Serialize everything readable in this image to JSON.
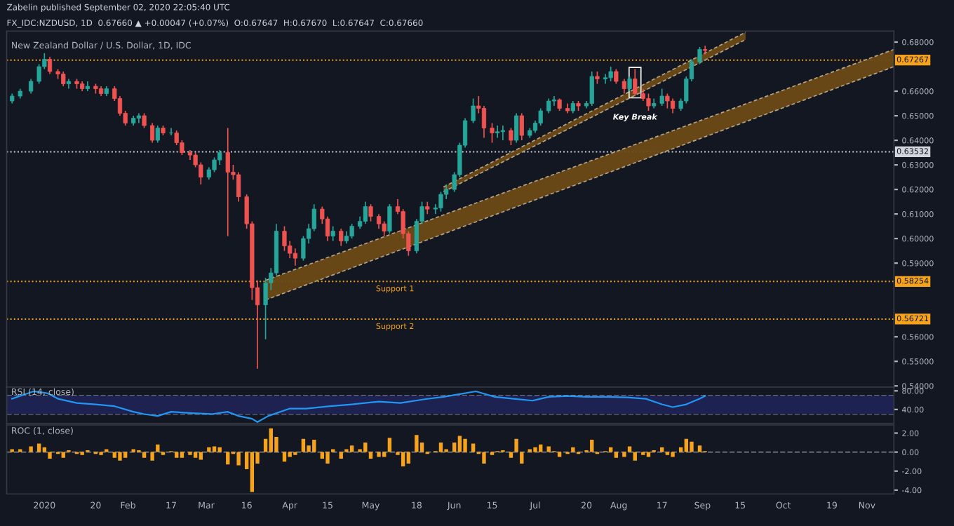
{
  "chart_data": [
    {
      "type": "candlestick",
      "title": "New Zealand Dollar / U.S. Dollar, 1D, IDC",
      "subtitle": "FX_IDC:NZDUSD, 1D  0.67660 ▲ +0.00047 (+0.07%)  O:0.67647  H:0.67670  L:0.67647  C:0.67660",
      "annotations": [
        "Zabelin published September 02, 2020 22:05:40 UTC",
        {
          "text": "Key Break",
          "x": "2020-08-07",
          "y": 0.658
        },
        {
          "text": "Support 1",
          "x": "2020-05-10",
          "y": 0.58254
        },
        {
          "text": "Support 2",
          "x": "2020-05-10",
          "y": 0.56721
        }
      ],
      "colors": [
        "#26a69a",
        "#26a69a",
        "#26a69a",
        "#26a69a",
        "#26a69a",
        "#ef5350",
        "#ef5350",
        "#ef5350",
        "#26a69a",
        "#ef5350",
        "#ef5350",
        "#26a69a",
        "#ef5350",
        "#ef5350",
        "#26a69a",
        "#ef5350",
        "#ef5350",
        "#ef5350",
        "#26a69a",
        "#26a69a",
        "#ef5350",
        "#ef5350",
        "#26a69a",
        "#ef5350",
        "#26a69a",
        "#ef5350",
        "#ef5350",
        "#ef5350",
        "#ef5350",
        "#ef5350",
        "#26a69a",
        "#26a69a",
        "#26a69a",
        "#ef5350",
        "#ef5350",
        "#ef5350",
        "#ef5350",
        "#ef5350",
        "#ef5350",
        "#26a69a",
        "#26a69a",
        "#26a69a",
        "#ef5350",
        "#ef5350",
        "#ef5350",
        "#26a69a",
        "#26a69a",
        "#26a69a",
        "#ef5350",
        "#ef5350",
        "#26a69a",
        "#ef5350",
        "#26a69a",
        "#26a69a",
        "#26a69a",
        "#26a69a",
        "#ef5350",
        "#ef5350",
        "#ef5350",
        "#26a69a",
        "#ef5350",
        "#ef5350",
        "#ef5350",
        "#26a69a",
        "#26a69a",
        "#ef5350",
        "#26a69a",
        "#26a69a",
        "#26a69a",
        "#26a69a",
        "#26a69a",
        "#26a69a",
        "#26a69a",
        "#ef5350",
        "#ef5350",
        "#ef5350",
        "#26a69a",
        "#26a69a",
        "#ef5350",
        "#26a69a",
        "#ef5350",
        "#26a69a",
        "#26a69a",
        "#26a69a",
        "#26a69a",
        "#26a69a",
        "#ef5350",
        "#ef5350",
        "#26a69a",
        "#ef5350",
        "#26a69a",
        "#26a69a",
        "#ef5350",
        "#26a69a",
        "#26a69a",
        "#ef5350",
        "#ef5350",
        "#26a69a",
        "#ef5350",
        "#ef5350",
        "#ef5350",
        "#26a69a",
        "#26a69a",
        "#ef5350",
        "#ef5350",
        "#26a69a",
        "#26a69a",
        "#26a69a",
        "#26a69a",
        "#ef5350"
      ],
      "x": [
        "2019-12-20",
        "2019-12-23",
        "2019-12-27",
        "2019-12-30",
        "2020-01-01",
        "2020-01-03",
        "2020-01-06",
        "2020-01-08",
        "2020-01-10",
        "2020-01-13",
        "2020-01-15",
        "2020-01-17",
        "2020-01-20",
        "2020-01-22",
        "2020-01-24",
        "2020-01-27",
        "2020-01-29",
        "2020-01-31",
        "2020-02-03",
        "2020-02-05",
        "2020-02-07",
        "2020-02-10",
        "2020-02-12",
        "2020-02-14",
        "2020-02-17",
        "2020-02-19",
        "2020-02-21",
        "2020-02-24",
        "2020-02-26",
        "2020-02-28",
        "2020-03-02",
        "2020-03-04",
        "2020-03-06",
        "2020-03-09",
        "2020-03-11",
        "2020-03-13",
        "2020-03-16",
        "2020-03-18",
        "2020-03-20",
        "2020-03-23",
        "2020-03-25",
        "2020-03-27",
        "2020-03-30",
        "2020-04-01",
        "2020-04-03",
        "2020-04-06",
        "2020-04-08",
        "2020-04-10",
        "2020-04-13",
        "2020-04-15",
        "2020-04-17",
        "2020-04-20",
        "2020-04-22",
        "2020-04-24",
        "2020-04-27",
        "2020-04-29",
        "2020-05-01",
        "2020-05-04",
        "2020-05-06",
        "2020-05-08",
        "2020-05-11",
        "2020-05-13",
        "2020-05-15",
        "2020-05-18",
        "2020-05-20",
        "2020-05-22",
        "2020-05-25",
        "2020-05-27",
        "2020-05-29",
        "2020-06-01",
        "2020-06-03",
        "2020-06-05",
        "2020-06-08",
        "2020-06-10",
        "2020-06-12",
        "2020-06-15",
        "2020-06-17",
        "2020-06-19",
        "2020-06-22",
        "2020-06-24",
        "2020-06-26",
        "2020-06-29",
        "2020-07-01",
        "2020-07-03",
        "2020-07-06",
        "2020-07-08",
        "2020-07-10",
        "2020-07-13",
        "2020-07-15",
        "2020-07-17",
        "2020-07-20",
        "2020-07-22",
        "2020-07-24",
        "2020-07-27",
        "2020-07-29",
        "2020-07-31",
        "2020-08-03",
        "2020-08-05",
        "2020-08-07",
        "2020-08-10",
        "2020-08-12",
        "2020-08-14",
        "2020-08-17",
        "2020-08-19",
        "2020-08-21",
        "2020-08-24",
        "2020-08-26",
        "2020-08-28",
        "2020-08-31",
        "2020-09-02"
      ],
      "ohlc": [
        [
          0.656,
          0.659,
          0.655,
          0.658
        ],
        [
          0.658,
          0.661,
          0.657,
          0.66
        ],
        [
          0.66,
          0.665,
          0.659,
          0.664
        ],
        [
          0.664,
          0.671,
          0.663,
          0.67
        ],
        [
          0.67,
          0.6755,
          0.669,
          0.673
        ],
        [
          0.673,
          0.674,
          0.667,
          0.668
        ],
        [
          0.668,
          0.669,
          0.665,
          0.667
        ],
        [
          0.667,
          0.668,
          0.662,
          0.663
        ],
        [
          0.663,
          0.665,
          0.661,
          0.664
        ],
        [
          0.664,
          0.665,
          0.661,
          0.663
        ],
        [
          0.663,
          0.664,
          0.66,
          0.661
        ],
        [
          0.661,
          0.664,
          0.66,
          0.662
        ],
        [
          0.662,
          0.663,
          0.659,
          0.661
        ],
        [
          0.661,
          0.662,
          0.658,
          0.659
        ],
        [
          0.659,
          0.662,
          0.658,
          0.661
        ],
        [
          0.661,
          0.662,
          0.656,
          0.657
        ],
        [
          0.657,
          0.658,
          0.65,
          0.651
        ],
        [
          0.651,
          0.652,
          0.646,
          0.647
        ],
        [
          0.647,
          0.65,
          0.646,
          0.649
        ],
        [
          0.649,
          0.651,
          0.647,
          0.65
        ],
        [
          0.65,
          0.651,
          0.645,
          0.646
        ],
        [
          0.646,
          0.647,
          0.639,
          0.64
        ],
        [
          0.64,
          0.646,
          0.639,
          0.645
        ],
        [
          0.645,
          0.646,
          0.642,
          0.643
        ],
        [
          0.643,
          0.645,
          0.642,
          0.643
        ],
        [
          0.643,
          0.644,
          0.638,
          0.639
        ],
        [
          0.639,
          0.64,
          0.634,
          0.635
        ],
        [
          0.635,
          0.636,
          0.632,
          0.634
        ],
        [
          0.634,
          0.635,
          0.629,
          0.63
        ],
        [
          0.63,
          0.631,
          0.622,
          0.625
        ],
        [
          0.625,
          0.629,
          0.624,
          0.628
        ],
        [
          0.628,
          0.633,
          0.627,
          0.632
        ],
        [
          0.632,
          0.636,
          0.63,
          0.635
        ],
        [
          0.635,
          0.645,
          0.601,
          0.627
        ],
        [
          0.627,
          0.63,
          0.624,
          0.626
        ],
        [
          0.626,
          0.627,
          0.615,
          0.617
        ],
        [
          0.617,
          0.618,
          0.604,
          0.606
        ],
        [
          0.606,
          0.607,
          0.575,
          0.58
        ],
        [
          0.58,
          0.583,
          0.547,
          0.573
        ],
        [
          0.573,
          0.584,
          0.559,
          0.582
        ],
        [
          0.582,
          0.588,
          0.579,
          0.586
        ],
        [
          0.586,
          0.606,
          0.585,
          0.603
        ],
        [
          0.603,
          0.605,
          0.595,
          0.597
        ],
        [
          0.597,
          0.599,
          0.592,
          0.594
        ],
        [
          0.594,
          0.596,
          0.589,
          0.592
        ],
        [
          0.592,
          0.601,
          0.591,
          0.6
        ],
        [
          0.6,
          0.606,
          0.598,
          0.604
        ],
        [
          0.604,
          0.614,
          0.603,
          0.612
        ],
        [
          0.612,
          0.613,
          0.606,
          0.608
        ],
        [
          0.608,
          0.609,
          0.599,
          0.601
        ],
        [
          0.601,
          0.605,
          0.599,
          0.603
        ],
        [
          0.603,
          0.604,
          0.597,
          0.599
        ],
        [
          0.599,
          0.603,
          0.598,
          0.601
        ],
        [
          0.601,
          0.606,
          0.6,
          0.605
        ],
        [
          0.605,
          0.609,
          0.604,
          0.607
        ],
        [
          0.607,
          0.615,
          0.606,
          0.613
        ],
        [
          0.613,
          0.614,
          0.607,
          0.609
        ],
        [
          0.609,
          0.61,
          0.604,
          0.606
        ],
        [
          0.606,
          0.607,
          0.601,
          0.603
        ],
        [
          0.603,
          0.614,
          0.602,
          0.613
        ],
        [
          0.613,
          0.616,
          0.61,
          0.611
        ],
        [
          0.611,
          0.612,
          0.6,
          0.602
        ],
        [
          0.602,
          0.603,
          0.593,
          0.595
        ],
        [
          0.595,
          0.608,
          0.594,
          0.607
        ],
        [
          0.607,
          0.615,
          0.606,
          0.613
        ],
        [
          0.613,
          0.615,
          0.61,
          0.612
        ],
        [
          0.612,
          0.614,
          0.61,
          0.6125
        ],
        [
          0.6125,
          0.619,
          0.611,
          0.618
        ],
        [
          0.618,
          0.622,
          0.616,
          0.62
        ],
        [
          0.62,
          0.627,
          0.619,
          0.626
        ],
        [
          0.626,
          0.639,
          0.625,
          0.638
        ],
        [
          0.638,
          0.649,
          0.637,
          0.648
        ],
        [
          0.648,
          0.657,
          0.647,
          0.654
        ],
        [
          0.654,
          0.658,
          0.651,
          0.653
        ],
        [
          0.653,
          0.654,
          0.641,
          0.645
        ],
        [
          0.645,
          0.647,
          0.639,
          0.643
        ],
        [
          0.643,
          0.646,
          0.641,
          0.6435
        ],
        [
          0.6435,
          0.646,
          0.64,
          0.644
        ],
        [
          0.644,
          0.645,
          0.638,
          0.64
        ],
        [
          0.64,
          0.651,
          0.639,
          0.65
        ],
        [
          0.65,
          0.651,
          0.64,
          0.642
        ],
        [
          0.642,
          0.645,
          0.641,
          0.644
        ],
        [
          0.644,
          0.648,
          0.643,
          0.647
        ],
        [
          0.647,
          0.653,
          0.646,
          0.652
        ],
        [
          0.652,
          0.657,
          0.651,
          0.656
        ],
        [
          0.656,
          0.658,
          0.654,
          0.6565
        ],
        [
          0.6565,
          0.657,
          0.652,
          0.653
        ],
        [
          0.653,
          0.655,
          0.651,
          0.652
        ],
        [
          0.652,
          0.656,
          0.651,
          0.655
        ],
        [
          0.655,
          0.656,
          0.652,
          0.654
        ],
        [
          0.654,
          0.656,
          0.653,
          0.655
        ],
        [
          0.655,
          0.668,
          0.654,
          0.666
        ],
        [
          0.666,
          0.668,
          0.663,
          0.665
        ],
        [
          0.665,
          0.667,
          0.663,
          0.6655
        ],
        [
          0.6655,
          0.67,
          0.664,
          0.668
        ],
        [
          0.668,
          0.669,
          0.663,
          0.664
        ],
        [
          0.664,
          0.665,
          0.659,
          0.661
        ],
        [
          0.661,
          0.666,
          0.66,
          0.665
        ],
        [
          0.665,
          0.669,
          0.658,
          0.659
        ],
        [
          0.659,
          0.661,
          0.656,
          0.657
        ],
        [
          0.657,
          0.659,
          0.652,
          0.654
        ],
        [
          0.654,
          0.657,
          0.653,
          0.655
        ],
        [
          0.655,
          0.661,
          0.654,
          0.658
        ],
        [
          0.658,
          0.659,
          0.653,
          0.656
        ],
        [
          0.656,
          0.657,
          0.651,
          0.653
        ],
        [
          0.653,
          0.657,
          0.652,
          0.656
        ],
        [
          0.656,
          0.666,
          0.655,
          0.665
        ],
        [
          0.665,
          0.673,
          0.664,
          0.672
        ],
        [
          0.672,
          0.678,
          0.671,
          0.677
        ],
        [
          0.677,
          0.6785,
          0.675,
          0.6766
        ]
      ],
      "series": [
        {
          "type": "line",
          "line_style": "dashed",
          "color": "#b5a48a",
          "x": [
            "2020-03-23",
            "2020-11-11"
          ],
          "values": [
            0.583,
            0.677
          ],
          "lower": [
            0.575,
            0.67
          ],
          "upper": [
            0.583,
            0.677
          ]
        },
        {
          "type": "line",
          "line_style": "dashed",
          "color": "#b5a48a",
          "x": [
            "2020-03-23",
            "2020-11-11"
          ],
          "values": [
            0.575,
            0.67
          ]
        },
        {
          "type": "line",
          "line_style": "dashed",
          "color": "#b5a48a",
          "x": [
            "2020-05-28",
            "2020-09-17"
          ],
          "values": [
            0.621,
            0.684
          ],
          "lower": [
            0.619,
            0.681
          ],
          "upper": [
            0.621,
            0.684
          ]
        },
        {
          "type": "line",
          "line_style": "dashed",
          "color": "#b5a48a",
          "x": [
            "2020-05-28",
            "2020-09-17"
          ],
          "values": [
            0.619,
            0.681
          ]
        }
      ],
      "ref_lines": [
        {
          "axis": "y",
          "value": 0.67267,
          "label": "0.67267",
          "color": "#f7a21b",
          "line_style": "dotted"
        },
        {
          "axis": "y",
          "value": 0.63532,
          "label": "0.63532",
          "color": "#d1d4dc",
          "line_style": "dotted"
        },
        {
          "axis": "y",
          "value": 0.58254,
          "label": "0.58254",
          "color": "#f7a21b",
          "line_style": "dotted"
        },
        {
          "axis": "y",
          "value": 0.56721,
          "label": "0.56721",
          "color": "#f7a21b",
          "line_style": "dotted"
        }
      ],
      "xlim": [
        "2019-12-18",
        "2020-11-11"
      ],
      "ylim": [
        0.5395,
        0.6845
      ],
      "yticks": [
        {
          "value": 0.54,
          "label": "0.54000"
        },
        {
          "value": 0.55,
          "label": "0.55000"
        },
        {
          "value": 0.56,
          "label": "0.56000"
        },
        {
          "value": 0.59,
          "label": "0.59000"
        },
        {
          "value": 0.6,
          "label": "0.60000"
        },
        {
          "value": 0.61,
          "label": "0.61000"
        },
        {
          "value": 0.62,
          "label": "0.62000"
        },
        {
          "value": 0.63,
          "label": "0.63000"
        },
        {
          "value": 0.64,
          "label": "0.64000"
        },
        {
          "value": 0.65,
          "label": "0.65000"
        },
        {
          "value": 0.66,
          "label": "0.66000"
        },
        {
          "value": 0.68,
          "label": "0.68000"
        }
      ],
      "tick_labels": "y",
      "grid": false,
      "legend": false
    },
    {
      "type": "line",
      "title": "RSI (14, close)",
      "series": [
        {
          "color": "#2196f3",
          "x": [
            "2019-12-20",
            "2019-12-28",
            "2020-01-02",
            "2020-01-06",
            "2020-01-13",
            "2020-01-20",
            "2020-01-27",
            "2020-02-03",
            "2020-02-07",
            "2020-02-12",
            "2020-02-17",
            "2020-02-25",
            "2020-03-03",
            "2020-03-09",
            "2020-03-13",
            "2020-03-18",
            "2020-03-20",
            "2020-03-24",
            "2020-04-01",
            "2020-04-07",
            "2020-04-16",
            "2020-04-24",
            "2020-05-04",
            "2020-05-12",
            "2020-05-21",
            "2020-05-28",
            "2020-06-05",
            "2020-06-09",
            "2020-06-16",
            "2020-06-23",
            "2020-06-30",
            "2020-07-06",
            "2020-07-13",
            "2020-07-20",
            "2020-07-27",
            "2020-08-04",
            "2020-08-11",
            "2020-08-17",
            "2020-08-21",
            "2020-08-26",
            "2020-08-31",
            "2020-09-02"
          ],
          "values": [
            63,
            79,
            75,
            63,
            54,
            51,
            47,
            35,
            30,
            26,
            35,
            32,
            30,
            35,
            26,
            20,
            13,
            26,
            42,
            42,
            47,
            51,
            57,
            54,
            62,
            67,
            75,
            79,
            67,
            63,
            59,
            67,
            69,
            67,
            67,
            66,
            63,
            51,
            45,
            51,
            63,
            69
          ]
        }
      ],
      "bands": [
        {
          "axis": "y",
          "from": 30,
          "to": 70,
          "color": "#1e2250"
        }
      ],
      "ref_lines": [
        {
          "axis": "y",
          "value": 70,
          "color": "#787b86",
          "line_style": "dashed"
        },
        {
          "axis": "y",
          "value": 30,
          "color": "#787b86",
          "line_style": "dashed"
        }
      ],
      "xlim": [
        "2019-12-18",
        "2020-11-11"
      ],
      "ylim": [
        10,
        88
      ],
      "yticks": [
        {
          "value": 40,
          "label": "40.00"
        },
        {
          "value": 80,
          "label": "80.00"
        }
      ],
      "tick_labels": "y",
      "grid": false,
      "legend": false
    },
    {
      "type": "bar",
      "title": "ROC (1, close)",
      "color": "#f7a21b",
      "x": [
        "2019-12-20",
        "2019-12-23",
        "2019-12-27",
        "2019-12-30",
        "2020-01-01",
        "2020-01-03",
        "2020-01-06",
        "2020-01-08",
        "2020-01-10",
        "2020-01-13",
        "2020-01-15",
        "2020-01-17",
        "2020-01-20",
        "2020-01-22",
        "2020-01-24",
        "2020-01-27",
        "2020-01-29",
        "2020-01-31",
        "2020-02-03",
        "2020-02-05",
        "2020-02-07",
        "2020-02-10",
        "2020-02-12",
        "2020-02-14",
        "2020-02-17",
        "2020-02-19",
        "2020-02-21",
        "2020-02-24",
        "2020-02-26",
        "2020-02-28",
        "2020-03-02",
        "2020-03-04",
        "2020-03-06",
        "2020-03-09",
        "2020-03-11",
        "2020-03-13",
        "2020-03-16",
        "2020-03-18",
        "2020-03-20",
        "2020-03-23",
        "2020-03-25",
        "2020-03-27",
        "2020-03-30",
        "2020-04-01",
        "2020-04-03",
        "2020-04-06",
        "2020-04-08",
        "2020-04-10",
        "2020-04-13",
        "2020-04-15",
        "2020-04-17",
        "2020-04-20",
        "2020-04-22",
        "2020-04-24",
        "2020-04-27",
        "2020-04-29",
        "2020-05-01",
        "2020-05-04",
        "2020-05-06",
        "2020-05-08",
        "2020-05-11",
        "2020-05-13",
        "2020-05-15",
        "2020-05-18",
        "2020-05-20",
        "2020-05-22",
        "2020-05-25",
        "2020-05-27",
        "2020-05-29",
        "2020-06-01",
        "2020-06-03",
        "2020-06-05",
        "2020-06-08",
        "2020-06-10",
        "2020-06-12",
        "2020-06-15",
        "2020-06-17",
        "2020-06-19",
        "2020-06-22",
        "2020-06-24",
        "2020-06-26",
        "2020-06-29",
        "2020-07-01",
        "2020-07-03",
        "2020-07-06",
        "2020-07-08",
        "2020-07-10",
        "2020-07-13",
        "2020-07-15",
        "2020-07-17",
        "2020-07-20",
        "2020-07-22",
        "2020-07-24",
        "2020-07-27",
        "2020-07-29",
        "2020-07-31",
        "2020-08-03",
        "2020-08-05",
        "2020-08-07",
        "2020-08-10",
        "2020-08-12",
        "2020-08-14",
        "2020-08-17",
        "2020-08-19",
        "2020-08-21",
        "2020-08-24",
        "2020-08-26",
        "2020-08-28",
        "2020-08-31",
        "2020-09-02"
      ],
      "values": [
        0.3,
        0.3,
        0.6,
        0.9,
        0.5,
        -0.7,
        -0.2,
        -0.6,
        0.2,
        -0.2,
        -0.3,
        0.2,
        -0.2,
        -0.3,
        0.3,
        -0.6,
        -0.9,
        -0.6,
        0.3,
        0.2,
        -0.6,
        -0.9,
        0.8,
        -0.3,
        0.1,
        -0.6,
        -0.6,
        -0.3,
        -0.6,
        -0.8,
        0.5,
        0.6,
        0.5,
        -1.3,
        -0.2,
        -1.4,
        -1.8,
        -4.2,
        -1.2,
        1.4,
        2.5,
        1.6,
        -1.0,
        -0.5,
        -0.3,
        1.4,
        0.7,
        1.3,
        -0.7,
        -1.2,
        0.3,
        -0.7,
        0.3,
        0.7,
        0.3,
        1.0,
        -0.7,
        -0.5,
        -0.5,
        1.5,
        -0.3,
        -1.5,
        -1.2,
        1.8,
        1.0,
        -0.2,
        0.1,
        1.0,
        0.3,
        1.0,
        1.7,
        1.4,
        0.9,
        -0.2,
        -1.2,
        -0.3,
        0.1,
        0.2,
        -0.6,
        1.4,
        -1.2,
        0.3,
        0.5,
        0.8,
        0.6,
        0.1,
        -0.5,
        -0.2,
        0.5,
        -0.2,
        0.2,
        1.3,
        -0.2,
        0.1,
        0.5,
        -0.6,
        -0.5,
        0.6,
        -0.9,
        -0.3,
        -0.5,
        0.2,
        0.5,
        -0.3,
        -0.5,
        0.5,
        1.4,
        1.1,
        0.7,
        0.1
      ],
      "ref_lines": [
        {
          "axis": "y",
          "value": 0,
          "color": "#787b86",
          "line_style": "dashed"
        }
      ],
      "xlim": [
        "2019-12-18",
        "2020-11-11"
      ],
      "ylim": [
        -4.4,
        2.85
      ],
      "yticks": [
        {
          "value": -4,
          "label": "-4.00"
        },
        {
          "value": -2,
          "label": "-2.00"
        },
        {
          "value": 0,
          "label": "0.00"
        },
        {
          "value": 2,
          "label": "2.00"
        }
      ],
      "xticks": [
        {
          "value": "2020-01-01",
          "label": "2020"
        },
        {
          "value": "2020-01-20",
          "label": "20"
        },
        {
          "value": "2020-02-01",
          "label": "Feb"
        },
        {
          "value": "2020-02-17",
          "label": "17"
        },
        {
          "value": "2020-03-01",
          "label": "Mar"
        },
        {
          "value": "2020-03-16",
          "label": "16"
        },
        {
          "value": "2020-04-01",
          "label": "Apr"
        },
        {
          "value": "2020-04-15",
          "label": "15"
        },
        {
          "value": "2020-05-01",
          "label": "May"
        },
        {
          "value": "2020-05-18",
          "label": "18"
        },
        {
          "value": "2020-06-01",
          "label": "Jun"
        },
        {
          "value": "2020-06-15",
          "label": "15"
        },
        {
          "value": "2020-07-01",
          "label": "Jul"
        },
        {
          "value": "2020-07-20",
          "label": "20"
        },
        {
          "value": "2020-08-01",
          "label": "Aug"
        },
        {
          "value": "2020-08-17",
          "label": "17"
        },
        {
          "value": "2020-09-01",
          "label": "Sep"
        },
        {
          "value": "2020-09-15",
          "label": "15"
        },
        {
          "value": "2020-10-01",
          "label": "Oct"
        },
        {
          "value": "2020-10-19",
          "label": "19"
        },
        {
          "value": "2020-11-01",
          "label": "Nov"
        }
      ],
      "grid": false,
      "legend": false
    }
  ]
}
